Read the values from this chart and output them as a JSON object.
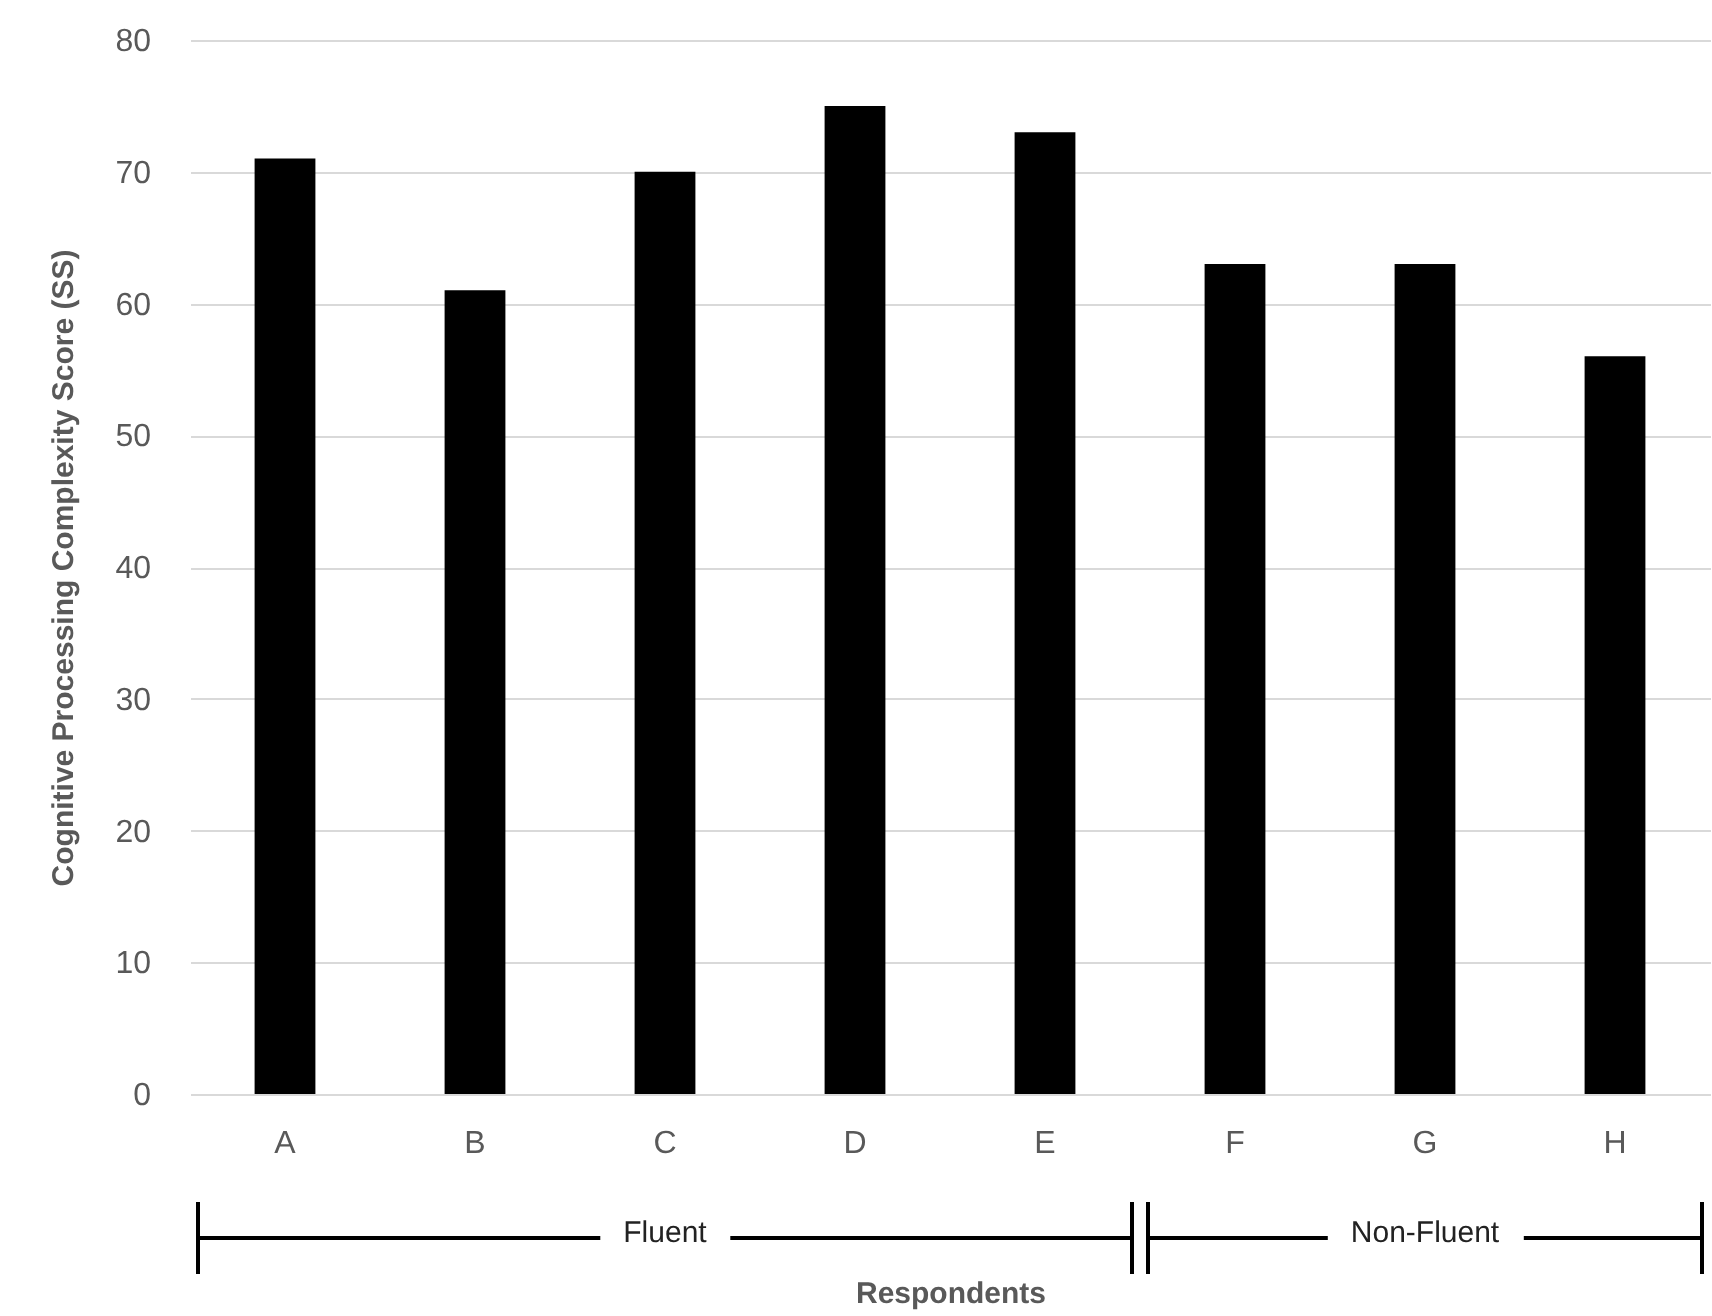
{
  "chart_data": {
    "type": "bar",
    "xlabel": "Respondents",
    "ylabel": "Cognitive Processing Complexity Score (SS)",
    "categories": [
      "A",
      "B",
      "C",
      "D",
      "E",
      "F",
      "G",
      "H"
    ],
    "values": [
      71,
      61,
      70,
      75,
      73,
      63,
      63,
      56
    ],
    "color": "#000000",
    "ylim": [
      0,
      80
    ],
    "yticks": [
      0,
      10,
      20,
      30,
      40,
      50,
      60,
      70,
      80
    ],
    "grid": "y",
    "annotations": [
      "Fluent",
      "Non-Fluent"
    ]
  }
}
